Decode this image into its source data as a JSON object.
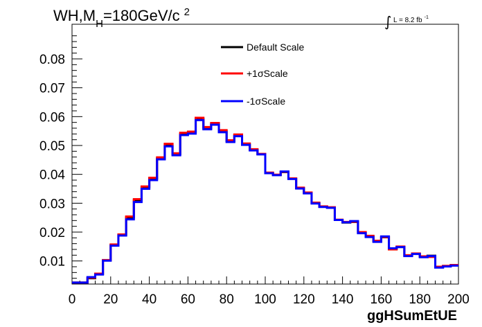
{
  "chart_data": {
    "type": "line",
    "title_main": "WH,M",
    "title_sub": "H",
    "title_rest": "=180GeV/c",
    "title_sup": "2",
    "lumi_integral": "∫",
    "lumi_text": "L = 8.2 fb",
    "lumi_sup": "-1",
    "xlabel": "ggHSumEtUE",
    "ylabel": "",
    "xlim": [
      0,
      200
    ],
    "ylim": [
      0.002,
      0.092
    ],
    "x_ticks": [
      0,
      20,
      40,
      60,
      80,
      100,
      120,
      140,
      160,
      180,
      200
    ],
    "x_tick_labels": [
      "0",
      "20",
      "40",
      "60",
      "80",
      "100",
      "120",
      "140",
      "160",
      "180",
      "200"
    ],
    "y_ticks": [
      0.01,
      0.02,
      0.03,
      0.04,
      0.05,
      0.06,
      0.07,
      0.08
    ],
    "y_tick_labels": [
      "0.01",
      "0.02",
      "0.03",
      "0.04",
      "0.05",
      "0.06",
      "0.07",
      "0.08"
    ],
    "bin_edges": [
      0,
      4,
      8,
      12,
      16,
      20,
      24,
      28,
      32,
      36,
      40,
      44,
      48,
      52,
      56,
      60,
      64,
      68,
      72,
      76,
      80,
      84,
      88,
      92,
      96,
      100,
      104,
      108,
      112,
      116,
      120,
      124,
      128,
      132,
      136,
      140,
      144,
      148,
      152,
      156,
      160,
      164,
      168,
      172,
      176,
      180,
      184,
      188,
      192,
      196,
      200
    ],
    "legend_position": "top-center",
    "series": [
      {
        "name": "Default Scale",
        "color": "#000000",
        "values": [
          0.0025,
          0.0025,
          0.004,
          0.0055,
          0.0102,
          0.0155,
          0.019,
          0.025,
          0.031,
          0.0355,
          0.0385,
          0.0455,
          0.0502,
          0.047,
          0.054,
          0.0545,
          0.0592,
          0.056,
          0.0575,
          0.055,
          0.0515,
          0.0535,
          0.0505,
          0.0485,
          0.047,
          0.0405,
          0.0398,
          0.0408,
          0.0385,
          0.0352,
          0.0335,
          0.03,
          0.0288,
          0.0285,
          0.0242,
          0.0233,
          0.0235,
          0.0198,
          0.0185,
          0.0168,
          0.0182,
          0.0142,
          0.0148,
          0.0118,
          0.0125,
          0.0115,
          0.0118,
          0.0078,
          0.0082,
          0.0085,
          0.0062
        ]
      },
      {
        "name": "+1σScale",
        "color": "#ff0000",
        "values": [
          0.0025,
          0.0025,
          0.0042,
          0.0056,
          0.0103,
          0.0157,
          0.0192,
          0.0254,
          0.0314,
          0.0358,
          0.0388,
          0.0459,
          0.0506,
          0.0473,
          0.0544,
          0.0548,
          0.0596,
          0.0564,
          0.0578,
          0.0553,
          0.0518,
          0.0538,
          0.0507,
          0.0487,
          0.0471,
          0.0406,
          0.0399,
          0.0409,
          0.0386,
          0.0354,
          0.0337,
          0.0302,
          0.0289,
          0.0286,
          0.0243,
          0.0235,
          0.0236,
          0.02,
          0.0187,
          0.017,
          0.0183,
          0.014,
          0.015,
          0.012,
          0.0126,
          0.0116,
          0.0114,
          0.008,
          0.0083,
          0.0086,
          0.006
        ]
      },
      {
        "name": "-1σScale",
        "color": "#0000ff",
        "values": [
          0.0025,
          0.0025,
          0.0044,
          0.0053,
          0.0101,
          0.0153,
          0.0188,
          0.0244,
          0.0304,
          0.035,
          0.038,
          0.0452,
          0.0497,
          0.0466,
          0.0536,
          0.0541,
          0.0588,
          0.0556,
          0.0572,
          0.0546,
          0.0512,
          0.0532,
          0.0502,
          0.0483,
          0.0469,
          0.0404,
          0.0397,
          0.041,
          0.0384,
          0.0351,
          0.0334,
          0.0299,
          0.0287,
          0.0284,
          0.0242,
          0.0234,
          0.0238,
          0.0196,
          0.0183,
          0.0166,
          0.0185,
          0.0144,
          0.0148,
          0.0117,
          0.0124,
          0.0113,
          0.0117,
          0.0077,
          0.0081,
          0.0084,
          0.0058
        ]
      }
    ]
  }
}
